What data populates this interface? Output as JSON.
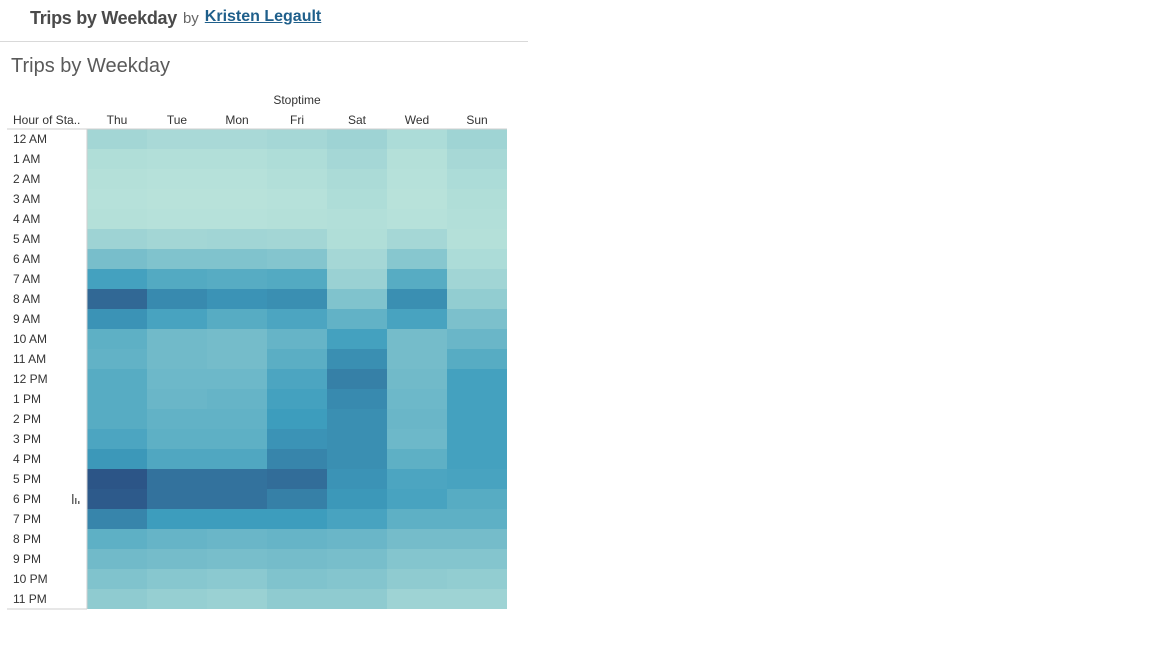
{
  "header": {
    "title": "Trips by Weekday",
    "by": "by",
    "author": "Kristen Legault"
  },
  "sheet": {
    "title": "Trips by Weekday"
  },
  "chart_data": {
    "type": "heatmap",
    "column_header": "Stoptime",
    "row_header": "Hour of Sta..",
    "columns": [
      "Thu",
      "Tue",
      "Mon",
      "Fri",
      "Sat",
      "Wed",
      "Sun"
    ],
    "rows": [
      "12 AM",
      "1 AM",
      "2 AM",
      "3 AM",
      "4 AM",
      "5 AM",
      "6 AM",
      "7 AM",
      "8 AM",
      "9 AM",
      "10 AM",
      "11 AM",
      "12 PM",
      "1 PM",
      "2 PM",
      "3 PM",
      "4 PM",
      "5 PM",
      "6 PM",
      "7 PM",
      "8 PM",
      "9 PM",
      "10 PM",
      "11 PM"
    ],
    "values": [
      [
        0.15,
        0.12,
        0.12,
        0.14,
        0.18,
        0.1,
        0.17
      ],
      [
        0.08,
        0.07,
        0.07,
        0.09,
        0.14,
        0.06,
        0.13
      ],
      [
        0.06,
        0.05,
        0.05,
        0.07,
        0.11,
        0.05,
        0.1
      ],
      [
        0.05,
        0.04,
        0.04,
        0.05,
        0.09,
        0.04,
        0.08
      ],
      [
        0.06,
        0.05,
        0.05,
        0.06,
        0.07,
        0.05,
        0.07
      ],
      [
        0.18,
        0.15,
        0.16,
        0.15,
        0.08,
        0.14,
        0.06
      ],
      [
        0.38,
        0.34,
        0.34,
        0.32,
        0.14,
        0.3,
        0.1
      ],
      [
        0.66,
        0.58,
        0.56,
        0.58,
        0.2,
        0.56,
        0.16
      ],
      [
        0.92,
        0.78,
        0.74,
        0.76,
        0.34,
        0.76,
        0.24
      ],
      [
        0.74,
        0.64,
        0.56,
        0.62,
        0.5,
        0.64,
        0.36
      ],
      [
        0.52,
        0.42,
        0.4,
        0.48,
        0.66,
        0.4,
        0.46
      ],
      [
        0.5,
        0.42,
        0.4,
        0.54,
        0.76,
        0.4,
        0.56
      ],
      [
        0.56,
        0.44,
        0.44,
        0.62,
        0.82,
        0.42,
        0.66
      ],
      [
        0.56,
        0.46,
        0.48,
        0.66,
        0.78,
        0.44,
        0.66
      ],
      [
        0.56,
        0.5,
        0.5,
        0.7,
        0.76,
        0.46,
        0.66
      ],
      [
        0.62,
        0.52,
        0.52,
        0.74,
        0.76,
        0.44,
        0.66
      ],
      [
        0.72,
        0.6,
        0.6,
        0.8,
        0.76,
        0.52,
        0.66
      ],
      [
        1.0,
        0.88,
        0.88,
        0.9,
        0.74,
        0.62,
        0.64
      ],
      [
        0.98,
        0.88,
        0.88,
        0.82,
        0.72,
        0.64,
        0.56
      ],
      [
        0.8,
        0.7,
        0.7,
        0.7,
        0.64,
        0.52,
        0.52
      ],
      [
        0.52,
        0.48,
        0.46,
        0.48,
        0.46,
        0.4,
        0.4
      ],
      [
        0.42,
        0.4,
        0.38,
        0.4,
        0.38,
        0.32,
        0.32
      ],
      [
        0.34,
        0.3,
        0.28,
        0.34,
        0.32,
        0.26,
        0.24
      ],
      [
        0.26,
        0.22,
        0.2,
        0.26,
        0.26,
        0.18,
        0.18
      ]
    ],
    "value_scale": "relative 0-1",
    "color_low": "#bfe6dc",
    "color_mid": "#3d9dbd",
    "color_high": "#2c5587"
  }
}
